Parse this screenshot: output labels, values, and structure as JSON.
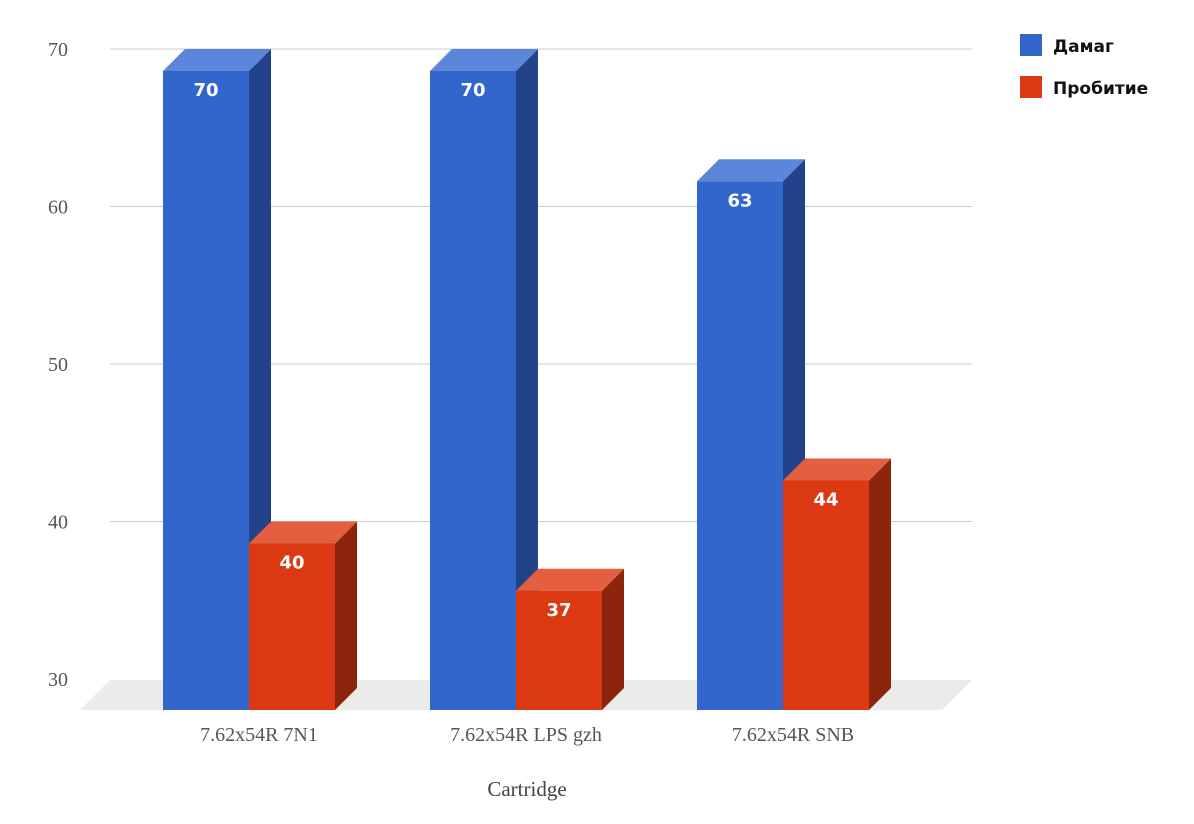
{
  "chart_data": {
    "type": "bar",
    "categories": [
      "7.62x54R 7N1",
      "7.62x54R LPS gzh",
      "7.62x54R SNB"
    ],
    "series": [
      {
        "name": "Дамаг",
        "values": [
          70,
          70,
          63
        ],
        "color": "#3366cc",
        "side_color": "#22438a",
        "top_color": "#5b86d9"
      },
      {
        "name": "Пробитие",
        "values": [
          40,
          37,
          44
        ],
        "color": "#dc3912",
        "side_color": "#8c250c",
        "top_color": "#e35f40"
      }
    ],
    "title": "",
    "xlabel": "Cartridge",
    "ylabel": "",
    "ylim": [
      30,
      70
    ],
    "yticks": [
      30,
      40,
      50,
      60,
      70
    ],
    "grid": true,
    "legend": "top-right",
    "three_d": true
  }
}
